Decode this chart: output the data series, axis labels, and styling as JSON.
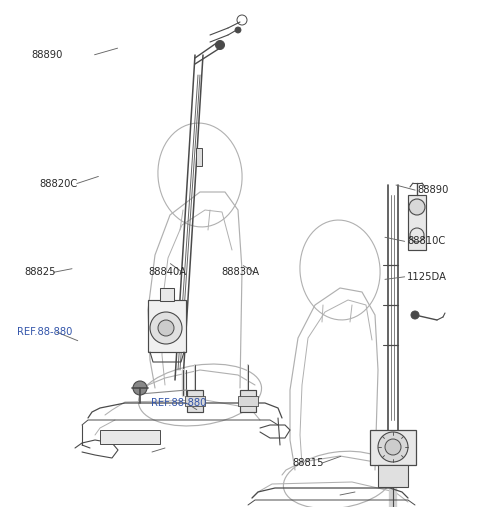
{
  "bg_color": "#ffffff",
  "lc": "#4a4a4a",
  "sc": "#b0b0b0",
  "label_color": "#2a2a2a",
  "ref_color": "#3355aa",
  "labels": [
    {
      "text": "88890",
      "xf": 0.13,
      "yf": 0.108,
      "ha": "right",
      "ul": false,
      "fs": 7.2
    },
    {
      "text": "88820C",
      "xf": 0.082,
      "yf": 0.362,
      "ha": "left",
      "ul": false,
      "fs": 7.2
    },
    {
      "text": "88825",
      "xf": 0.05,
      "yf": 0.537,
      "ha": "left",
      "ul": false,
      "fs": 7.2
    },
    {
      "text": "REF.88-880",
      "xf": 0.035,
      "yf": 0.655,
      "ha": "left",
      "ul": true,
      "fs": 7.2
    },
    {
      "text": "88840A",
      "xf": 0.31,
      "yf": 0.537,
      "ha": "left",
      "ul": false,
      "fs": 7.2
    },
    {
      "text": "88830A",
      "xf": 0.462,
      "yf": 0.537,
      "ha": "left",
      "ul": false,
      "fs": 7.2
    },
    {
      "text": "REF.88-880",
      "xf": 0.315,
      "yf": 0.795,
      "ha": "left",
      "ul": true,
      "fs": 7.2
    },
    {
      "text": "88890",
      "xf": 0.87,
      "yf": 0.375,
      "ha": "left",
      "ul": false,
      "fs": 7.2
    },
    {
      "text": "88810C",
      "xf": 0.848,
      "yf": 0.476,
      "ha": "left",
      "ul": false,
      "fs": 7.2
    },
    {
      "text": "1125DA",
      "xf": 0.848,
      "yf": 0.546,
      "ha": "left",
      "ul": false,
      "fs": 7.2
    },
    {
      "text": "88815",
      "xf": 0.61,
      "yf": 0.913,
      "ha": "left",
      "ul": false,
      "fs": 7.2
    }
  ],
  "leader_lines": [
    {
      "x1f": 0.197,
      "y1f": 0.108,
      "x2f": 0.245,
      "y2f": 0.095
    },
    {
      "x1f": 0.16,
      "y1f": 0.362,
      "x2f": 0.205,
      "y2f": 0.348
    },
    {
      "x1f": 0.112,
      "y1f": 0.537,
      "x2f": 0.15,
      "y2f": 0.53
    },
    {
      "x1f": 0.118,
      "y1f": 0.655,
      "x2f": 0.162,
      "y2f": 0.672
    },
    {
      "x1f": 0.38,
      "y1f": 0.537,
      "x2f": 0.355,
      "y2f": 0.52
    },
    {
      "x1f": 0.53,
      "y1f": 0.537,
      "x2f": 0.507,
      "y2f": 0.524
    },
    {
      "x1f": 0.388,
      "y1f": 0.795,
      "x2f": 0.41,
      "y2f": 0.808
    },
    {
      "x1f": 0.865,
      "y1f": 0.375,
      "x2f": 0.825,
      "y2f": 0.365
    },
    {
      "x1f": 0.843,
      "y1f": 0.476,
      "x2f": 0.802,
      "y2f": 0.468
    },
    {
      "x1f": 0.843,
      "y1f": 0.546,
      "x2f": 0.802,
      "y2f": 0.551
    },
    {
      "x1f": 0.672,
      "y1f": 0.913,
      "x2f": 0.71,
      "y2f": 0.9
    }
  ]
}
